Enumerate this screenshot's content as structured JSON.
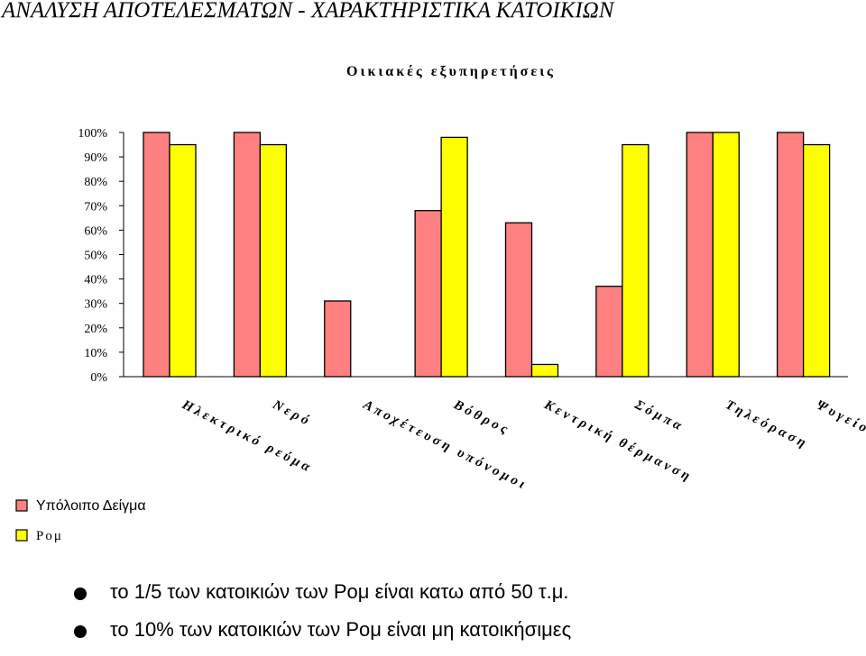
{
  "page": {
    "title": "ΑΝΑΛΥΣΗ ΑΠΟΤΕΛΕΣΜΑΤΩΝ - ΧΑΡΑΚΤΗΡΙΣΤΙΚΑ ΚΑΤΟΙΚΙΩΝ",
    "bullets": [
      "το 1/5 των κατοικιών των Ρομ είναι κατω από 50 τ.μ.",
      "το 10% των κατοικιών των Ρομ είναι μη κατοικήσιμες"
    ]
  },
  "chart_data": {
    "type": "bar",
    "title": "Οικιακές εξυπηρετήσεις",
    "categories": [
      "Ηλεκτρικό ρεύμα",
      "Νερό",
      "Αποχέτευση υπόνομοι",
      "Βόθρος",
      "Κεντρική θέρμανση",
      "Σόμπα",
      "Τηλεόραση",
      "Ψυγείο"
    ],
    "series": [
      {
        "name": "Υπόλοιπο Δείγμα",
        "color": "#ff8080",
        "values": [
          100,
          100,
          31,
          68,
          63,
          37,
          100,
          100
        ]
      },
      {
        "name": "Ρομ",
        "color": "#ffff00",
        "values": [
          95,
          95,
          0,
          98,
          5,
          95,
          100,
          95
        ]
      }
    ],
    "yticks": [
      "0%",
      "10%",
      "20%",
      "30%",
      "40%",
      "50%",
      "60%",
      "70%",
      "80%",
      "90%",
      "100%"
    ],
    "ylim": [
      0,
      100
    ],
    "grid": false,
    "legend_position": "bottom-left"
  }
}
